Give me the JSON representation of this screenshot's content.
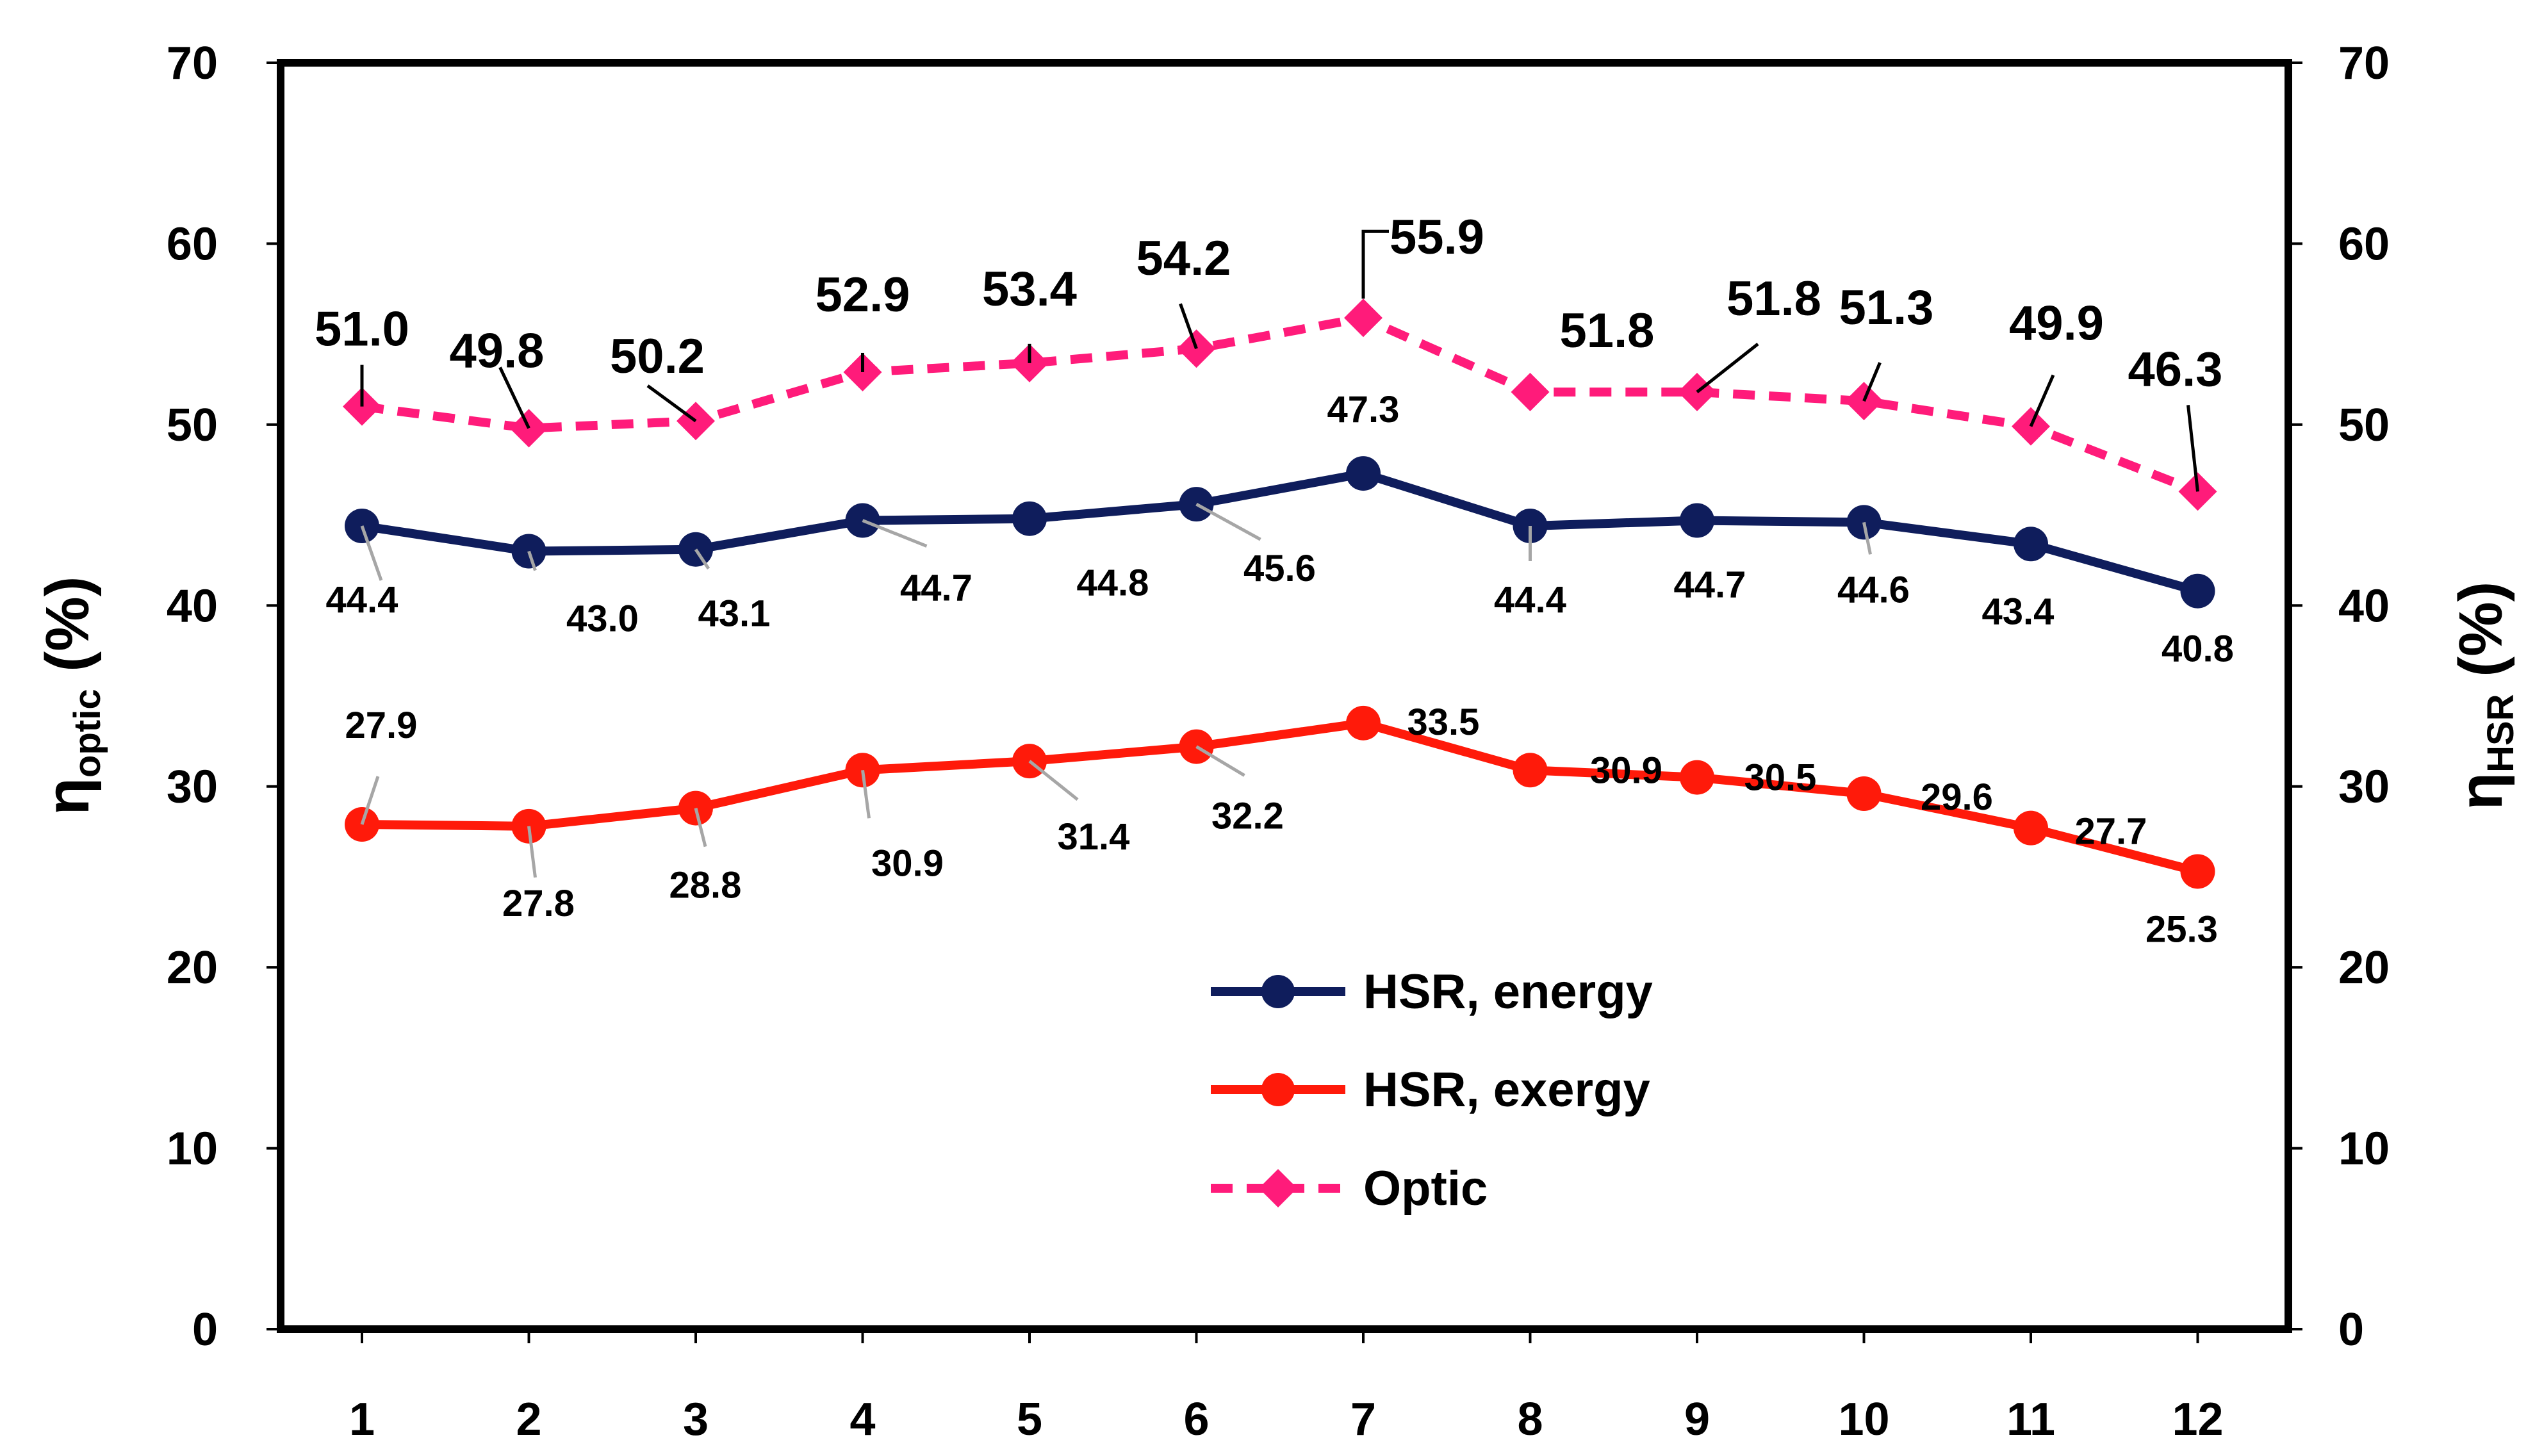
{
  "chart_data": {
    "type": "line",
    "categories": [
      "1",
      "2",
      "3",
      "4",
      "5",
      "6",
      "7",
      "8",
      "9",
      "10",
      "11",
      "12"
    ],
    "y_left": {
      "label_main": "η",
      "label_sub": "optic",
      "label_suffix": " (%)",
      "range": [
        0,
        70
      ],
      "ticks": [
        "0",
        "10",
        "20",
        "30",
        "40",
        "50",
        "60",
        "70"
      ]
    },
    "y_right": {
      "label_main": "η",
      "label_sub": "HSR",
      "label_suffix": " (%)",
      "range": [
        0,
        70
      ],
      "ticks": [
        "0",
        "10",
        "20",
        "30",
        "40",
        "50",
        "60",
        "70"
      ]
    },
    "grid": false,
    "legend_position": "lower-center",
    "series": [
      {
        "name": "HSR, energy",
        "color": "#0f1d5c",
        "line_style": "solid",
        "marker": "circle",
        "values": [
          44.4,
          43.0,
          43.1,
          44.7,
          44.8,
          45.6,
          47.3,
          44.4,
          44.7,
          44.6,
          43.4,
          40.8
        ],
        "labels": [
          "44.4",
          "43.0",
          "43.1",
          "44.7",
          "44.8",
          "45.6",
          "47.3",
          "44.4",
          "44.7",
          "44.6",
          "43.4",
          "40.8"
        ]
      },
      {
        "name": "HSR, exergy",
        "color": "#ff1a0a",
        "line_style": "solid",
        "marker": "circle",
        "values": [
          27.9,
          27.8,
          28.8,
          30.9,
          31.4,
          32.2,
          33.5,
          30.9,
          30.5,
          29.6,
          27.7,
          25.3
        ],
        "labels": [
          "27.9",
          "27.8",
          "28.8",
          "30.9",
          "31.4",
          "32.2",
          "33.5",
          "30.9",
          "30.5",
          "29.6",
          "27.7",
          "25.3"
        ]
      },
      {
        "name": "Optic",
        "color": "#ff1b7a",
        "line_style": "dashed",
        "marker": "diamond",
        "values": [
          51.0,
          49.8,
          50.2,
          52.9,
          53.4,
          54.2,
          55.9,
          51.8,
          51.8,
          51.3,
          49.9,
          46.3
        ],
        "labels": [
          "51.0",
          "49.8",
          "50.2",
          "52.9",
          "53.4",
          "54.2",
          "55.9",
          "51.8",
          "51.8",
          "51.3",
          "49.9",
          "46.3"
        ]
      }
    ]
  }
}
